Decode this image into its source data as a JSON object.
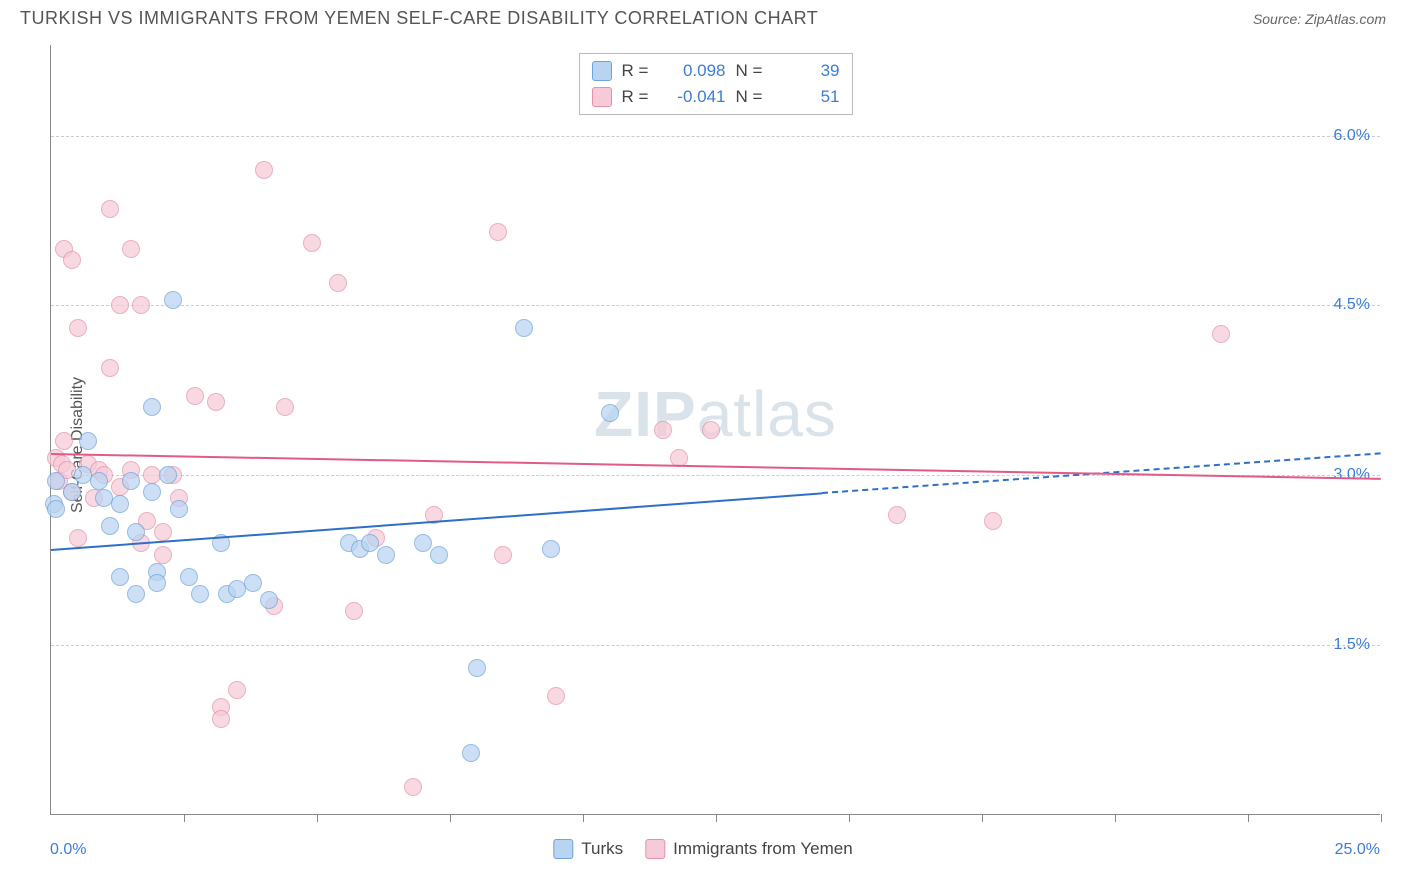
{
  "header": {
    "title": "TURKISH VS IMMIGRANTS FROM YEMEN SELF-CARE DISABILITY CORRELATION CHART",
    "source_prefix": "Source: ",
    "source_name": "ZipAtlas.com"
  },
  "chart": {
    "type": "scatter",
    "watermark_a": "ZIP",
    "watermark_b": "atlas",
    "ylabel": "Self-Care Disability",
    "xlim": [
      0,
      25
    ],
    "ylim": [
      0,
      6.8
    ],
    "x_axis_min_label": "0.0%",
    "x_axis_max_label": "25.0%",
    "x_ticks": [
      2.5,
      5.0,
      7.5,
      10.0,
      12.5,
      15.0,
      17.5,
      20.0,
      22.5,
      25.0
    ],
    "y_gridlines": [
      {
        "value": 1.5,
        "label": "1.5%"
      },
      {
        "value": 3.0,
        "label": "3.0%"
      },
      {
        "value": 4.5,
        "label": "4.5%"
      },
      {
        "value": 6.0,
        "label": "6.0%"
      }
    ],
    "background_color": "#ffffff",
    "grid_color": "#cccccc",
    "axis_color": "#888888",
    "tick_label_color": "#3b7dd8",
    "series": {
      "turks": {
        "label": "Turks",
        "color_fill": "#b9d4f1",
        "color_stroke": "#6ea3de",
        "trend_color": "#2e6fc9",
        "r_value": "0.098",
        "n_value": "39",
        "trend_start": {
          "x": 0,
          "y": 2.35
        },
        "trend_solid_end": {
          "x": 14.5,
          "y": 2.85
        },
        "trend_dashed_end": {
          "x": 25,
          "y": 3.2
        },
        "points": [
          [
            0.05,
            2.75
          ],
          [
            0.1,
            2.7
          ],
          [
            0.1,
            2.95
          ],
          [
            0.4,
            2.85
          ],
          [
            0.6,
            3.0
          ],
          [
            0.7,
            3.3
          ],
          [
            0.9,
            2.95
          ],
          [
            1.0,
            2.8
          ],
          [
            1.1,
            2.55
          ],
          [
            1.3,
            2.75
          ],
          [
            1.3,
            2.1
          ],
          [
            1.5,
            2.95
          ],
          [
            1.6,
            2.5
          ],
          [
            1.6,
            1.95
          ],
          [
            1.9,
            3.6
          ],
          [
            1.9,
            2.85
          ],
          [
            2.0,
            2.15
          ],
          [
            2.0,
            2.05
          ],
          [
            2.2,
            3.0
          ],
          [
            2.3,
            4.55
          ],
          [
            2.4,
            2.7
          ],
          [
            2.6,
            2.1
          ],
          [
            2.8,
            1.95
          ],
          [
            3.2,
            2.4
          ],
          [
            3.3,
            1.95
          ],
          [
            3.5,
            2.0
          ],
          [
            3.8,
            2.05
          ],
          [
            4.1,
            1.9
          ],
          [
            5.6,
            2.4
          ],
          [
            5.8,
            2.35
          ],
          [
            6.0,
            2.4
          ],
          [
            6.3,
            2.3
          ],
          [
            7.0,
            2.4
          ],
          [
            7.3,
            2.3
          ],
          [
            7.9,
            0.55
          ],
          [
            8.0,
            1.3
          ],
          [
            8.9,
            4.3
          ],
          [
            9.4,
            2.35
          ],
          [
            10.5,
            3.55
          ]
        ]
      },
      "yemen": {
        "label": "Immigrants from Yemen",
        "color_fill": "#f6cad6",
        "color_stroke": "#e691ab",
        "trend_color": "#e15b86",
        "r_value": "-0.041",
        "n_value": "51",
        "trend_start": {
          "x": 0,
          "y": 3.2
        },
        "trend_solid_end": {
          "x": 25,
          "y": 2.98
        },
        "trend_dashed_end": null,
        "points": [
          [
            0.1,
            3.15
          ],
          [
            0.15,
            2.95
          ],
          [
            0.2,
            3.1
          ],
          [
            0.25,
            3.3
          ],
          [
            0.25,
            5.0
          ],
          [
            0.3,
            3.05
          ],
          [
            0.4,
            4.9
          ],
          [
            0.4,
            2.85
          ],
          [
            0.5,
            4.3
          ],
          [
            0.5,
            2.45
          ],
          [
            0.7,
            3.1
          ],
          [
            0.8,
            2.8
          ],
          [
            0.9,
            3.05
          ],
          [
            1.0,
            3.0
          ],
          [
            1.1,
            5.35
          ],
          [
            1.1,
            3.95
          ],
          [
            1.3,
            2.9
          ],
          [
            1.3,
            4.5
          ],
          [
            1.5,
            5.0
          ],
          [
            1.5,
            3.05
          ],
          [
            1.7,
            4.5
          ],
          [
            1.7,
            2.4
          ],
          [
            1.8,
            2.6
          ],
          [
            1.9,
            3.0
          ],
          [
            2.1,
            2.5
          ],
          [
            2.1,
            2.3
          ],
          [
            2.3,
            3.0
          ],
          [
            2.4,
            2.8
          ],
          [
            2.7,
            3.7
          ],
          [
            3.1,
            3.65
          ],
          [
            3.2,
            0.95
          ],
          [
            3.2,
            0.85
          ],
          [
            3.5,
            1.1
          ],
          [
            4.0,
            5.7
          ],
          [
            4.2,
            1.85
          ],
          [
            4.4,
            3.6
          ],
          [
            4.9,
            5.05
          ],
          [
            5.4,
            4.7
          ],
          [
            5.7,
            1.8
          ],
          [
            6.1,
            2.45
          ],
          [
            6.8,
            0.25
          ],
          [
            7.2,
            2.65
          ],
          [
            8.4,
            5.15
          ],
          [
            8.5,
            2.3
          ],
          [
            9.5,
            1.05
          ],
          [
            11.5,
            3.4
          ],
          [
            11.8,
            3.15
          ],
          [
            12.4,
            3.4
          ],
          [
            15.9,
            2.65
          ],
          [
            17.7,
            2.6
          ],
          [
            22.0,
            4.25
          ]
        ]
      }
    },
    "legend_top": {
      "r_label": "R =",
      "n_label": "N ="
    }
  }
}
